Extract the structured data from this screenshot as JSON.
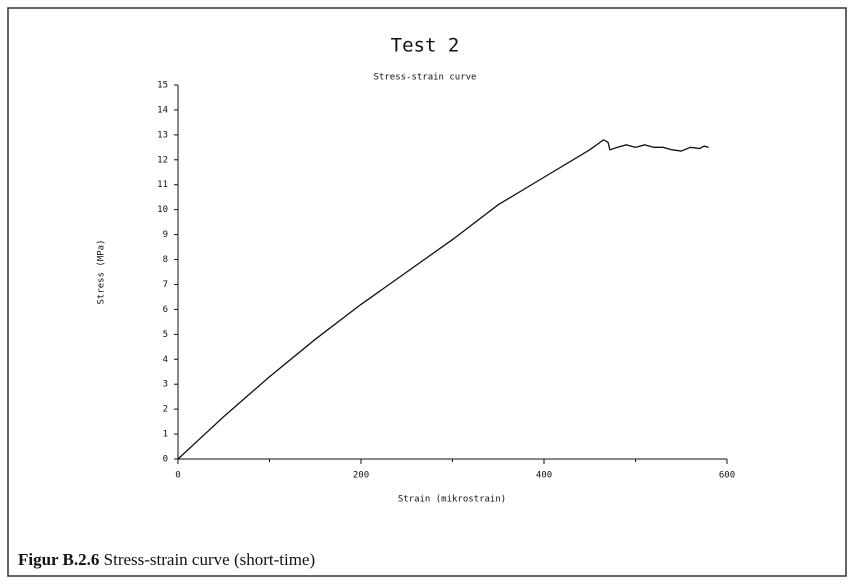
{
  "chart_data": {
    "type": "line",
    "title": "Test 2",
    "subtitle": "Stress-strain curve",
    "x_label": "Strain (mikrostrain)",
    "y_label": "Stress (MPa)",
    "series": [
      {
        "name": "Test 2",
        "color": "#111111",
        "x": [
          0,
          25,
          50,
          75,
          100,
          150,
          200,
          250,
          300,
          350,
          400,
          450,
          465,
          470,
          472,
          480,
          490,
          500,
          510,
          520,
          530,
          540,
          550,
          560,
          570,
          575,
          580
        ],
        "values": [
          0,
          0.85,
          1.7,
          2.5,
          3.3,
          4.8,
          6.2,
          7.5,
          8.8,
          10.2,
          11.3,
          12.4,
          12.8,
          12.7,
          12.4,
          12.5,
          12.6,
          12.5,
          12.6,
          12.5,
          12.5,
          12.4,
          12.35,
          12.5,
          12.45,
          12.55,
          12.5
        ]
      }
    ],
    "xlim": [
      0,
      600
    ],
    "xticks": [
      0,
      200,
      400,
      600
    ],
    "xminorticks": [
      100,
      300,
      500
    ],
    "ylim": [
      0,
      15
    ],
    "yticks": [
      0,
      1,
      2,
      3,
      4,
      5,
      6,
      7,
      8,
      9,
      10,
      11,
      12,
      13,
      14,
      15
    ]
  },
  "caption": {
    "label": "Figur B.2.6",
    "text": "Stress-strain curve (short-time)"
  }
}
